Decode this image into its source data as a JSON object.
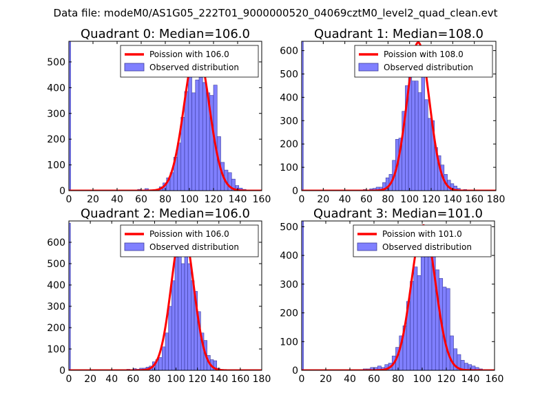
{
  "figure": {
    "suptitle": "Data file: modeM0/AS1G05_222T01_9000000520_04069cztM0_level2_quad_clean.evt"
  },
  "colors": {
    "bar_fill": "#8080ff",
    "bar_edge": "#3a3a9a",
    "line": "#ff0000",
    "axis": "#000000"
  },
  "chart_data": [
    {
      "type": "bar",
      "title": "Quadrant 0: Median=106.0",
      "xlim": [
        0,
        160
      ],
      "ylim": [
        0,
        580
      ],
      "xticks": [
        0,
        20,
        40,
        60,
        80,
        100,
        120,
        140,
        160
      ],
      "yticks": [
        0,
        100,
        200,
        300,
        400,
        500
      ],
      "legend": {
        "location": "top-right",
        "line_label": "Poission with 106.0",
        "bar_label": "Observed distribution"
      },
      "bin_width": 3,
      "zero_bar": 580,
      "bins": [
        [
          57,
          5
        ],
        [
          63,
          8
        ],
        [
          75,
          15
        ],
        [
          78,
          30
        ],
        [
          81,
          50
        ],
        [
          84,
          70
        ],
        [
          87,
          130
        ],
        [
          90,
          185
        ],
        [
          93,
          285
        ],
        [
          96,
          385
        ],
        [
          99,
          475
        ],
        [
          102,
          380
        ],
        [
          105,
          430
        ],
        [
          108,
          440
        ],
        [
          111,
          420
        ],
        [
          114,
          380
        ],
        [
          117,
          370
        ],
        [
          120,
          410
        ],
        [
          123,
          210
        ],
        [
          126,
          110
        ],
        [
          129,
          80
        ],
        [
          132,
          70
        ],
        [
          135,
          45
        ],
        [
          138,
          20
        ],
        [
          141,
          10
        ],
        [
          144,
          5
        ]
      ],
      "poisson": {
        "mean": 106.0,
        "peak": 555,
        "sigma": 10.3
      }
    },
    {
      "type": "bar",
      "title": "Quadrant 1: Median=108.0",
      "xlim": [
        0,
        180
      ],
      "ylim": [
        0,
        640
      ],
      "xticks": [
        0,
        20,
        40,
        60,
        80,
        100,
        120,
        140,
        160,
        180
      ],
      "yticks": [
        0,
        100,
        200,
        300,
        400,
        500,
        600
      ],
      "legend": {
        "location": "top-right",
        "line_label": "Poission with 108.0",
        "bar_label": "Observed distribution"
      },
      "bin_width": 3,
      "zero_bar": 640,
      "bins": [
        [
          57,
          5
        ],
        [
          63,
          8
        ],
        [
          66,
          10
        ],
        [
          69,
          15
        ],
        [
          72,
          15
        ],
        [
          75,
          35
        ],
        [
          78,
          55
        ],
        [
          81,
          70
        ],
        [
          84,
          130
        ],
        [
          87,
          220
        ],
        [
          90,
          225
        ],
        [
          93,
          340
        ],
        [
          96,
          450
        ],
        [
          99,
          490
        ],
        [
          102,
          470
        ],
        [
          105,
          470
        ],
        [
          108,
          420
        ],
        [
          111,
          490
        ],
        [
          114,
          390
        ],
        [
          117,
          310
        ],
        [
          120,
          300
        ],
        [
          123,
          185
        ],
        [
          126,
          150
        ],
        [
          129,
          110
        ],
        [
          132,
          70
        ],
        [
          135,
          45
        ],
        [
          138,
          30
        ],
        [
          141,
          20
        ],
        [
          144,
          10
        ],
        [
          150,
          5
        ]
      ],
      "poisson": {
        "mean": 108.0,
        "peak": 635,
        "sigma": 10.4
      }
    },
    {
      "type": "bar",
      "title": "Quadrant 2: Median=106.0",
      "xlim": [
        0,
        180
      ],
      "ylim": [
        0,
        700
      ],
      "xticks": [
        0,
        20,
        40,
        60,
        80,
        100,
        120,
        140,
        160,
        180
      ],
      "yticks": [
        0,
        100,
        200,
        300,
        400,
        500,
        600
      ],
      "legend": {
        "location": "top-right",
        "line_label": "Poission with 106.0",
        "bar_label": "Observed distribution"
      },
      "bin_width": 3,
      "zero_bar": 690,
      "bins": [
        [
          54,
          5
        ],
        [
          60,
          8
        ],
        [
          63,
          5
        ],
        [
          66,
          10
        ],
        [
          69,
          10
        ],
        [
          72,
          15
        ],
        [
          75,
          20
        ],
        [
          78,
          40
        ],
        [
          81,
          50
        ],
        [
          84,
          60
        ],
        [
          87,
          110
        ],
        [
          90,
          175
        ],
        [
          93,
          300
        ],
        [
          96,
          420
        ],
        [
          99,
          530
        ],
        [
          102,
          580
        ],
        [
          105,
          500
        ],
        [
          108,
          550
        ],
        [
          111,
          500
        ],
        [
          114,
          420
        ],
        [
          117,
          370
        ],
        [
          120,
          275
        ],
        [
          123,
          175
        ],
        [
          126,
          140
        ],
        [
          129,
          70
        ],
        [
          132,
          50
        ],
        [
          135,
          45
        ],
        [
          138,
          10
        ]
      ],
      "poisson": {
        "mean": 106.0,
        "peak": 670,
        "sigma": 10.3
      }
    },
    {
      "type": "bar",
      "title": "Quadrant 3: Median=101.0",
      "xlim": [
        0,
        160
      ],
      "ylim": [
        0,
        520
      ],
      "xticks": [
        0,
        20,
        40,
        60,
        80,
        100,
        120,
        140,
        160
      ],
      "yticks": [
        0,
        100,
        200,
        300,
        400,
        500
      ],
      "legend": {
        "location": "top-right",
        "line_label": "Poission with 101.0",
        "bar_label": "Observed distribution"
      },
      "bin_width": 3,
      "zero_bar": 520,
      "bins": [
        [
          51,
          5
        ],
        [
          54,
          5
        ],
        [
          57,
          10
        ],
        [
          60,
          10
        ],
        [
          63,
          15
        ],
        [
          66,
          10
        ],
        [
          69,
          20
        ],
        [
          72,
          25
        ],
        [
          75,
          50
        ],
        [
          78,
          80
        ],
        [
          81,
          120
        ],
        [
          84,
          155
        ],
        [
          87,
          240
        ],
        [
          90,
          310
        ],
        [
          93,
          360
        ],
        [
          96,
          330
        ],
        [
          99,
          410
        ],
        [
          102,
          420
        ],
        [
          105,
          410
        ],
        [
          108,
          395
        ],
        [
          111,
          350
        ],
        [
          114,
          320
        ],
        [
          117,
          290
        ],
        [
          120,
          285
        ],
        [
          123,
          120
        ],
        [
          126,
          75
        ],
        [
          129,
          55
        ],
        [
          132,
          35
        ],
        [
          135,
          25
        ],
        [
          138,
          20
        ],
        [
          141,
          15
        ],
        [
          144,
          10
        ],
        [
          147,
          5
        ]
      ],
      "poisson": {
        "mean": 101.0,
        "peak": 505,
        "sigma": 10.0
      }
    }
  ]
}
